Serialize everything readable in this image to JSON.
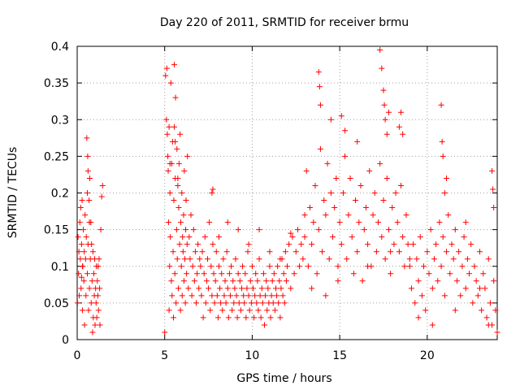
{
  "chart_data": {
    "type": "scatter",
    "title": "Day 220 of 2011, SRMTID for receiver brmu",
    "xlabel": "GPS time / hours",
    "ylabel": "SRMTID / TECUs",
    "xlim": [
      0,
      24
    ],
    "ylim": [
      0,
      0.4
    ],
    "xticks": [
      0,
      5,
      10,
      15,
      20
    ],
    "xtick_labels": [
      "0",
      "5",
      "10",
      "15",
      "20"
    ],
    "yticks": [
      0,
      0.05,
      0.1,
      0.15,
      0.2,
      0.25,
      0.3,
      0.35,
      0.4
    ],
    "ytick_labels": [
      "0",
      "0.05",
      "0.1",
      "0.15",
      "0.2",
      "0.25",
      "0.3",
      "0.35",
      "0.4"
    ],
    "grid": true,
    "marker": "+",
    "color": "#ff0000",
    "series": [
      {
        "name": "SRMTID",
        "x": [
          0.02,
          0.05,
          0.08,
          0.1,
          0.12,
          0.15,
          0.18,
          0.2,
          0.22,
          0.25,
          0.28,
          0.3,
          0.32,
          0.35,
          0.38,
          0.4,
          0.42,
          0.45,
          0.48,
          0.5,
          0.52,
          0.55,
          0.58,
          0.6,
          0.62,
          0.65,
          0.68,
          0.7,
          0.72,
          0.75,
          0.78,
          0.8,
          0.82,
          0.85,
          0.88,
          0.9,
          0.92,
          0.95,
          0.98,
          1.0,
          1.02,
          1.05,
          1.08,
          1.1,
          1.12,
          1.15,
          1.18,
          1.2,
          1.22,
          1.25,
          1.28,
          1.3,
          1.35,
          1.4,
          1.45,
          0.58,
          0.62,
          0.7,
          0.3,
          0.25,
          5.0,
          5.05,
          5.1,
          5.12,
          5.15,
          5.18,
          5.2,
          5.22,
          5.25,
          5.28,
          5.3,
          5.32,
          5.35,
          5.38,
          5.4,
          5.42,
          5.45,
          5.48,
          5.5,
          5.52,
          5.55,
          5.58,
          5.6,
          5.62,
          5.65,
          5.68,
          5.7,
          5.72,
          5.75,
          5.78,
          5.8,
          5.82,
          5.85,
          5.88,
          5.9,
          5.92,
          5.95,
          5.98,
          6.0,
          6.02,
          6.05,
          6.08,
          6.1,
          6.12,
          6.15,
          6.18,
          6.2,
          6.22,
          6.25,
          6.28,
          6.3,
          6.35,
          6.4,
          6.45,
          6.5,
          6.55,
          6.6,
          6.65,
          6.7,
          6.75,
          6.8,
          6.85,
          6.9,
          6.95,
          7.0,
          5.55,
          5.6,
          5.25,
          5.3,
          5.75,
          7.05,
          7.1,
          7.15,
          7.2,
          7.25,
          7.3,
          7.35,
          7.4,
          7.45,
          7.5,
          7.55,
          7.6,
          7.65,
          7.7,
          7.75,
          7.8,
          7.85,
          7.9,
          7.95,
          8.0,
          8.05,
          8.1,
          8.15,
          8.2,
          8.25,
          8.3,
          8.35,
          8.4,
          8.45,
          8.5,
          8.55,
          8.6,
          8.65,
          8.7,
          8.75,
          8.8,
          8.85,
          8.9,
          8.95,
          9.0,
          9.05,
          9.1,
          9.15,
          9.2,
          9.25,
          9.3,
          9.35,
          9.4,
          9.45,
          9.5,
          9.55,
          9.6,
          9.65,
          9.7,
          9.75,
          9.8,
          9.85,
          9.9,
          9.95,
          10.0,
          10.05,
          10.1,
          10.15,
          10.2,
          10.25,
          10.3,
          10.35,
          10.4,
          10.45,
          10.5,
          10.55,
          10.6,
          10.65,
          10.7,
          10.75,
          10.8,
          10.85,
          10.9,
          10.95,
          11.0,
          11.05,
          11.1,
          11.15,
          11.2,
          11.25,
          11.3,
          11.35,
          11.4,
          11.45,
          11.5,
          11.55,
          11.6,
          11.65,
          11.7,
          11.75,
          11.8,
          11.85,
          11.9,
          11.95,
          12.0,
          12.1,
          12.2,
          12.3,
          12.4,
          12.5,
          12.6,
          12.7,
          12.8,
          12.9,
          13.0,
          7.7,
          7.75,
          8.1,
          8.6,
          9.2,
          9.8,
          10.4,
          11.0,
          11.6,
          12.2,
          13.0,
          13.1,
          13.2,
          13.3,
          13.4,
          13.5,
          13.6,
          13.7,
          13.8,
          13.9,
          14.0,
          14.1,
          14.2,
          14.3,
          14.4,
          14.5,
          14.6,
          14.7,
          14.8,
          14.9,
          15.0,
          15.1,
          15.2,
          15.3,
          15.4,
          15.5,
          15.6,
          15.7,
          15.8,
          15.9,
          16.0,
          16.1,
          16.2,
          16.3,
          16.4,
          16.5,
          16.6,
          16.7,
          16.8,
          16.9,
          17.0,
          17.1,
          17.2,
          17.3,
          17.4,
          17.5,
          17.6,
          17.7,
          17.8,
          17.9,
          18.0,
          18.1,
          18.2,
          18.3,
          18.4,
          18.5,
          18.6,
          18.7,
          18.8,
          18.9,
          19.0,
          13.8,
          13.85,
          13.9,
          14.5,
          15.1,
          15.3,
          16.0,
          17.3,
          17.4,
          17.5,
          17.55,
          17.6,
          17.7,
          17.8,
          18.4,
          18.5,
          18.6,
          13.4,
          14.2,
          14.9,
          16.6,
          17.9,
          19.0,
          19.1,
          19.2,
          19.3,
          19.4,
          19.5,
          19.6,
          19.7,
          19.8,
          19.9,
          20.0,
          20.1,
          20.2,
          20.3,
          20.4,
          20.5,
          20.6,
          20.7,
          20.8,
          20.9,
          21.0,
          21.1,
          21.2,
          21.3,
          21.4,
          21.5,
          21.6,
          21.7,
          21.8,
          21.9,
          22.0,
          22.1,
          22.2,
          22.3,
          22.4,
          22.5,
          22.6,
          22.7,
          22.8,
          22.9,
          23.0,
          23.1,
          23.2,
          23.3,
          23.4,
          23.5,
          23.6,
          23.7,
          23.8,
          23.9,
          24.0,
          20.8,
          20.85,
          20.9,
          21.0,
          21.1,
          23.7,
          23.75,
          23.8,
          19.5,
          20.3,
          21.6,
          22.2,
          23.0,
          23.5
        ],
        "y": [
          0.05,
          0.14,
          0.09,
          0.12,
          0.06,
          0.16,
          0.11,
          0.18,
          0.07,
          0.13,
          0.19,
          0.04,
          0.1,
          0.15,
          0.08,
          0.12,
          0.02,
          0.17,
          0.11,
          0.06,
          0.14,
          0.275,
          0.09,
          0.25,
          0.13,
          0.04,
          0.19,
          0.07,
          0.22,
          0.11,
          0.16,
          0.05,
          0.13,
          0.08,
          0.01,
          0.12,
          0.03,
          0.09,
          0.06,
          0.11,
          0.02,
          0.07,
          0.05,
          0.1,
          0.03,
          0.08,
          0.06,
          0.1,
          0.04,
          0.11,
          0.07,
          0.02,
          0.15,
          0.195,
          0.21,
          0.2,
          0.23,
          0.16,
          0.1,
          0.085,
          0.01,
          0.36,
          0.3,
          0.37,
          0.28,
          0.25,
          0.23,
          0.16,
          0.04,
          0.1,
          0.2,
          0.14,
          0.35,
          0.08,
          0.24,
          0.06,
          0.27,
          0.12,
          0.03,
          0.19,
          0.375,
          0.09,
          0.22,
          0.33,
          0.05,
          0.15,
          0.26,
          0.11,
          0.21,
          0.07,
          0.18,
          0.24,
          0.13,
          0.28,
          0.04,
          0.16,
          0.1,
          0.2,
          0.06,
          0.14,
          0.12,
          0.17,
          0.08,
          0.23,
          0.11,
          0.05,
          0.15,
          0.19,
          0.09,
          0.13,
          0.25,
          0.07,
          0.14,
          0.11,
          0.17,
          0.06,
          0.1,
          0.15,
          0.08,
          0.12,
          0.05,
          0.09,
          0.13,
          0.07,
          0.11,
          0.29,
          0.27,
          0.29,
          0.24,
          0.22,
          0.1,
          0.06,
          0.12,
          0.03,
          0.09,
          0.14,
          0.05,
          0.08,
          0.11,
          0.07,
          0.16,
          0.04,
          0.1,
          0.06,
          0.13,
          0.09,
          0.05,
          0.08,
          0.12,
          0.06,
          0.03,
          0.1,
          0.07,
          0.05,
          0.09,
          0.04,
          0.11,
          0.06,
          0.08,
          0.05,
          0.12,
          0.07,
          0.03,
          0.09,
          0.06,
          0.1,
          0.04,
          0.08,
          0.05,
          0.07,
          0.11,
          0.06,
          0.03,
          0.09,
          0.05,
          0.08,
          0.04,
          0.07,
          0.1,
          0.06,
          0.05,
          0.09,
          0.03,
          0.07,
          0.12,
          0.06,
          0.04,
          0.08,
          0.05,
          0.1,
          0.07,
          0.03,
          0.06,
          0.09,
          0.05,
          0.08,
          0.04,
          0.11,
          0.06,
          0.03,
          0.07,
          0.05,
          0.09,
          0.02,
          0.06,
          0.08,
          0.04,
          0.07,
          0.05,
          0.1,
          0.03,
          0.06,
          0.08,
          0.05,
          0.09,
          0.04,
          0.07,
          0.06,
          0.1,
          0.05,
          0.08,
          0.03,
          0.07,
          0.11,
          0.06,
          0.09,
          0.05,
          0.12,
          0.08,
          0.1,
          0.13,
          0.07,
          0.14,
          0.09,
          0.12,
          0.15,
          0.1,
          0.13,
          0.11,
          0.17,
          0.2,
          0.205,
          0.14,
          0.16,
          0.15,
          0.13,
          0.15,
          0.12,
          0.11,
          0.145,
          0.14,
          0.23,
          0.1,
          0.18,
          0.13,
          0.16,
          0.21,
          0.09,
          0.15,
          0.26,
          0.12,
          0.19,
          0.17,
          0.24,
          0.11,
          0.2,
          0.14,
          0.18,
          0.22,
          0.1,
          0.16,
          0.13,
          0.2,
          0.25,
          0.11,
          0.17,
          0.22,
          0.14,
          0.09,
          0.19,
          0.12,
          0.16,
          0.21,
          0.08,
          0.15,
          0.18,
          0.13,
          0.23,
          0.1,
          0.17,
          0.2,
          0.12,
          0.16,
          0.24,
          0.14,
          0.19,
          0.11,
          0.22,
          0.15,
          0.09,
          0.18,
          0.13,
          0.2,
          0.16,
          0.12,
          0.21,
          0.14,
          0.1,
          0.17,
          0.13,
          0.11,
          0.365,
          0.345,
          0.32,
          0.3,
          0.305,
          0.285,
          0.27,
          0.395,
          0.37,
          0.34,
          0.32,
          0.3,
          0.28,
          0.31,
          0.29,
          0.31,
          0.28,
          0.07,
          0.06,
          0.08,
          0.1,
          0.12,
          0.1,
          0.07,
          0.13,
          0.05,
          0.11,
          0.08,
          0.14,
          0.06,
          0.1,
          0.04,
          0.12,
          0.09,
          0.15,
          0.07,
          0.11,
          0.13,
          0.08,
          0.16,
          0.1,
          0.14,
          0.06,
          0.12,
          0.17,
          0.09,
          0.13,
          0.11,
          0.15,
          0.08,
          0.12,
          0.06,
          0.1,
          0.14,
          0.07,
          0.11,
          0.09,
          0.13,
          0.05,
          0.1,
          0.08,
          0.06,
          0.12,
          0.04,
          0.09,
          0.07,
          0.03,
          0.11,
          0.05,
          0.02,
          0.08,
          0.04,
          0.01,
          0.32,
          0.27,
          0.25,
          0.2,
          0.22,
          0.23,
          0.205,
          0.18,
          0.03,
          0.02,
          0.04,
          0.16,
          0.07,
          0.02
        ]
      }
    ]
  }
}
